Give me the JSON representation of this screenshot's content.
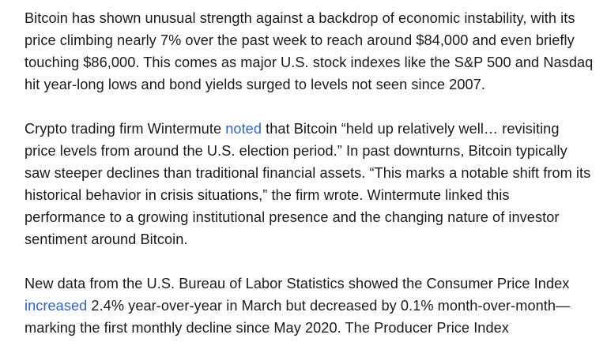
{
  "article": {
    "paragraph1": {
      "text": "Bitcoin has shown unusual strength against a backdrop of economic instability, with its price climbing nearly 7% over the past week to reach around $84,000 and even briefly touching $86,000. This comes as major U.S. stock indexes like the S&P 500 and Nasdaq hit year-long lows and bond yields surged to levels not seen since 2007."
    },
    "paragraph2": {
      "before_link": "Crypto trading firm Wintermute ",
      "link_text": "noted",
      "after_link": " that Bitcoin “held up relatively well… revisiting price levels from around the U.S. election period.” In past downturns, Bitcoin typically saw steeper declines than traditional financial assets. “This marks a notable shift from its historical behavior in crisis situations,” the firm wrote. Wintermute linked this performance to a growing institutional presence and the changing nature of investor sentiment around Bitcoin."
    },
    "paragraph3": {
      "before_link": "New data from the U.S. Bureau of Labor Statistics showed the Consumer Price Index ",
      "link_text": "increased",
      "after_link": " 2.4% year-over-year in March but decreased by 0.1% month-over-month—marking the first monthly decline since May 2020. The Producer Price Index"
    }
  },
  "colors": {
    "text": "#1a1a1a",
    "link": "#2f62c8",
    "background": "#ffffff"
  }
}
